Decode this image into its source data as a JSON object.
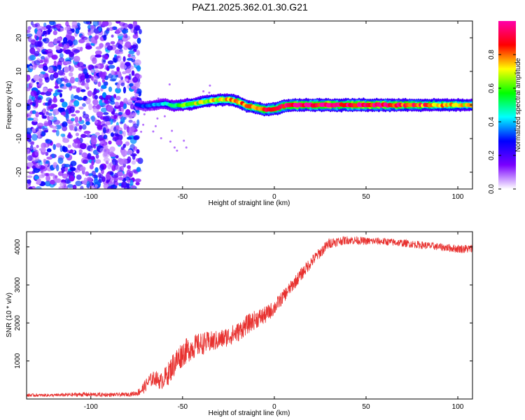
{
  "chart_data": [
    {
      "type": "heatmap",
      "title": "PAZ1.2025.362.01.30.G21",
      "xlabel": "Height of straight line (km)",
      "ylabel": "Frequency (Hz)",
      "xlim": [
        -135,
        108
      ],
      "ylim": [
        -25,
        25
      ],
      "xticks": [
        -100,
        -50,
        0,
        50,
        100
      ],
      "xtick_labels": [
        "-100",
        "-50",
        "0",
        "50",
        "100"
      ],
      "yticks": [
        -20,
        -10,
        0,
        10,
        20
      ],
      "ytick_labels": [
        "-20",
        "-10",
        "0",
        "10",
        "20"
      ],
      "noise_region": {
        "x_end": -73,
        "description_values": "scattered low-amplitude noise"
      },
      "ridge": {
        "x": [
          -75,
          -70,
          -65,
          -60,
          -55,
          -50,
          -45,
          -40,
          -35,
          -30,
          -25,
          -20,
          -15,
          -10,
          -5,
          0,
          5,
          10,
          20,
          30,
          40,
          50,
          60,
          70,
          80,
          90,
          100,
          108
        ],
        "freq": [
          0,
          -0.3,
          0,
          0.4,
          -0.2,
          0,
          0.3,
          0.8,
          1.3,
          1.5,
          1.6,
          1.0,
          -0.2,
          -0.8,
          -1.4,
          -1.2,
          -0.3,
          0,
          0,
          0,
          0,
          0,
          0,
          0,
          0,
          0,
          0,
          0
        ],
        "amplitude": [
          0.3,
          0.35,
          0.4,
          0.45,
          0.55,
          0.65,
          0.7,
          0.72,
          0.75,
          0.78,
          0.8,
          0.85,
          0.85,
          0.88,
          0.9,
          0.92,
          0.95,
          1.0,
          1.0,
          1.0,
          1.0,
          1.0,
          1.0,
          0.95,
          0.9,
          0.85,
          0.8,
          0.75
        ]
      },
      "colorbar": {
        "label": "Normalized spectral amplitude",
        "range": [
          0,
          1
        ],
        "ticks": [
          0.0,
          0.2,
          0.4,
          0.6,
          0.8
        ],
        "tick_labels": [
          "0.0",
          "0.2",
          "0.4",
          "0.6",
          "0.8"
        ],
        "colors": [
          "#ffffff",
          "#7a00ff",
          "#0000ff",
          "#00ffff",
          "#00ff00",
          "#ffff00",
          "#ff0000",
          "#ff00aa"
        ]
      }
    },
    {
      "type": "line",
      "xlabel": "Height of straight line (km)",
      "ylabel": "SNR (10 * v/v)",
      "xlim": [
        -135,
        108
      ],
      "ylim": [
        0,
        4400
      ],
      "xticks": [
        -100,
        -50,
        0,
        50,
        100
      ],
      "xtick_labels": [
        "-100",
        "-50",
        "0",
        "50",
        "100"
      ],
      "yticks": [
        1000,
        2000,
        3000,
        4000
      ],
      "ytick_labels": [
        "1000",
        "2000",
        "3000",
        "4000"
      ],
      "series": [
        {
          "name": "SNR",
          "color": "#e8312f",
          "x": [
            -135,
            -120,
            -105,
            -90,
            -80,
            -75,
            -72,
            -68,
            -65,
            -62,
            -58,
            -55,
            -50,
            -45,
            -40,
            -35,
            -30,
            -25,
            -20,
            -15,
            -10,
            -5,
            0,
            5,
            10,
            15,
            20,
            25,
            30,
            35,
            40,
            45,
            50,
            55,
            60,
            70,
            80,
            90,
            100,
            108
          ],
          "values": [
            100,
            100,
            120,
            110,
            120,
            150,
            250,
            480,
            560,
            450,
            650,
            900,
            1200,
            1350,
            1450,
            1500,
            1550,
            1650,
            1750,
            1950,
            2100,
            2200,
            2400,
            2700,
            3000,
            3300,
            3600,
            3850,
            4100,
            4150,
            4180,
            4170,
            4150,
            4150,
            4140,
            4100,
            4050,
            4000,
            3950,
            3950
          ],
          "noise_amplitude": [
            40,
            40,
            60,
            50,
            50,
            70,
            150,
            180,
            200,
            220,
            300,
            350,
            350,
            320,
            300,
            280,
            260,
            260,
            260,
            260,
            250,
            230,
            200,
            180,
            170,
            170,
            160,
            150,
            140,
            120,
            110,
            110,
            100,
            100,
            100,
            100,
            100,
            100,
            110,
            120
          ]
        }
      ]
    }
  ]
}
